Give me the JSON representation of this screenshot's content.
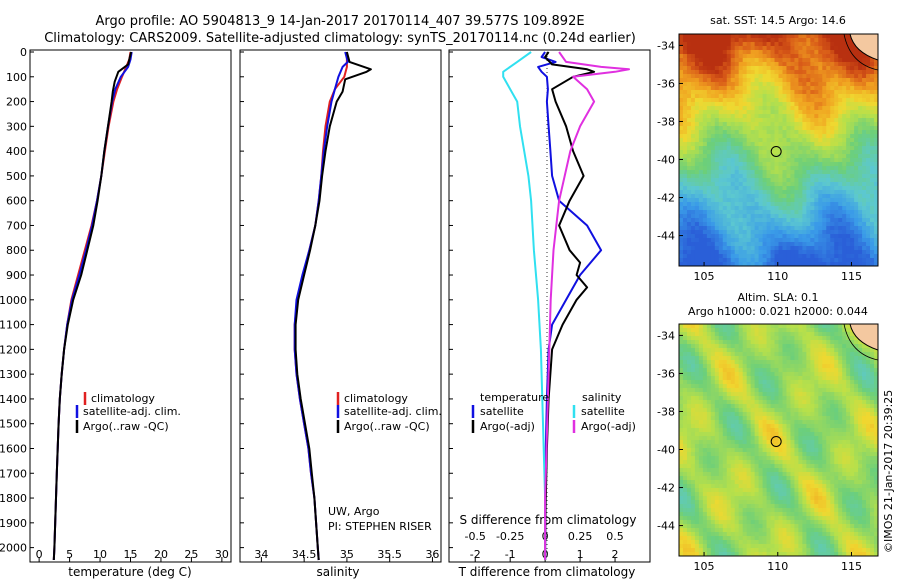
{
  "title_line1": "Argo profile: AO 5904813_9 14-Jan-2017 20170114_407 39.577S 109.892E",
  "title_line2": "Climatology: CARS2009. Satellite-adjusted climatology: synTS_20170114.nc (0.24d earlier)",
  "credit": "UW, Argo",
  "pi": "PI: STEPHEN RISER",
  "stamp": "©IMOS 21-Jan-2017 20:39:25",
  "colors": {
    "climatology": "#e02020",
    "satellite": "#1010e0",
    "argo": "#000000",
    "satellite_s": "#30e0f0",
    "argo_s": "#e030e0"
  },
  "chart_data": [
    {
      "type": "line",
      "xlabel": "temperature (deg C)",
      "ylim": [
        0,
        2050
      ],
      "y_ticks": [
        "0",
        "100",
        "200",
        "300",
        "400",
        "500",
        "600",
        "700",
        "800",
        "900",
        "1000",
        "1100",
        "1200",
        "1300",
        "1400",
        "1500",
        "1600",
        "1700",
        "1800",
        "1900",
        "2000"
      ],
      "x_ticks": [
        "0",
        "5",
        "10",
        "15",
        "20",
        "25",
        "30"
      ],
      "xlim": [
        -1.5,
        31.5
      ],
      "legend": [
        "climatology",
        "satellite-adj. clim.",
        "Argo(..raw -QC)"
      ],
      "series": [
        {
          "name": "climatology",
          "depth": [
            0,
            30,
            60,
            100,
            150,
            200,
            300,
            400,
            500,
            600,
            700,
            800,
            900,
            1000,
            1100,
            1200,
            1300,
            1400,
            1500,
            1700,
            2000,
            2050
          ],
          "values": [
            15.0,
            14.8,
            14.3,
            13.6,
            12.8,
            12.2,
            11.4,
            10.8,
            10.2,
            9.5,
            8.6,
            7.5,
            6.4,
            5.3,
            4.6,
            4.1,
            3.7,
            3.4,
            3.2,
            2.9,
            2.5,
            2.4
          ]
        },
        {
          "name": "satellite-adj. clim.",
          "depth": [
            0,
            30,
            60,
            100,
            150,
            200,
            300,
            400,
            500,
            600,
            700,
            800,
            900,
            1000,
            1100,
            1200,
            1300,
            1400,
            1500,
            1700,
            2000,
            2050
          ],
          "values": [
            15.2,
            15.0,
            14.6,
            13.4,
            12.5,
            12.0,
            11.3,
            10.7,
            10.2,
            9.5,
            8.7,
            7.7,
            6.6,
            5.4,
            4.6,
            4.1,
            3.7,
            3.4,
            3.2,
            2.9,
            2.5,
            2.4
          ]
        },
        {
          "name": "Argo(..raw -QC)",
          "depth": [
            0,
            20,
            50,
            80,
            120,
            160,
            200,
            300,
            400,
            500,
            600,
            700,
            800,
            900,
            1000,
            1100,
            1200,
            1300,
            1400,
            1500,
            1700,
            2000,
            2050
          ],
          "values": [
            15.1,
            14.9,
            14.6,
            13.0,
            12.4,
            12.1,
            11.9,
            11.3,
            10.7,
            10.2,
            9.6,
            8.9,
            7.9,
            6.9,
            5.6,
            4.7,
            4.1,
            3.7,
            3.4,
            3.2,
            2.9,
            2.5,
            2.4
          ]
        }
      ]
    },
    {
      "type": "line",
      "xlabel": "salinity",
      "ylim": [
        0,
        2050
      ],
      "x_ticks": [
        "34",
        "34.5",
        "35",
        "35.5",
        "36"
      ],
      "xlim": [
        33.75,
        36.1
      ],
      "legend": [
        "climatology",
        "satellite-adj. clim.",
        "Argo(..raw -QC)"
      ],
      "series": [
        {
          "name": "climatology",
          "depth": [
            0,
            60,
            100,
            150,
            200,
            300,
            400,
            500,
            600,
            700,
            800,
            900,
            1000,
            1100,
            1200,
            1300,
            1400,
            1500,
            1600,
            1700,
            1800,
            1900,
            2000,
            2050
          ],
          "values": [
            35.0,
            35.0,
            34.97,
            34.86,
            34.8,
            34.75,
            34.72,
            34.7,
            34.67,
            34.63,
            34.56,
            34.49,
            34.42,
            34.39,
            34.39,
            34.41,
            34.45,
            34.5,
            34.55,
            34.58,
            34.62,
            34.64,
            34.66,
            34.67
          ]
        },
        {
          "name": "satellite-adj. clim.",
          "depth": [
            0,
            40,
            60,
            100,
            150,
            200,
            300,
            400,
            500,
            600,
            700,
            800,
            900,
            1000,
            1100,
            1200,
            1300,
            1400,
            1500,
            1600,
            1700,
            1800,
            1900,
            2000,
            2050
          ],
          "values": [
            34.98,
            35.01,
            34.95,
            34.9,
            34.86,
            34.82,
            34.77,
            34.73,
            34.7,
            34.67,
            34.63,
            34.56,
            34.48,
            34.41,
            34.39,
            34.39,
            34.41,
            34.45,
            34.5,
            34.55,
            34.58,
            34.62,
            34.64,
            34.66,
            34.67
          ]
        },
        {
          "name": "Argo(..raw -QC)",
          "depth": [
            0,
            40,
            70,
            80,
            110,
            160,
            200,
            300,
            400,
            500,
            600,
            700,
            800,
            900,
            1000,
            1100,
            1200,
            1300,
            1400,
            1500,
            1600,
            1700,
            1800,
            1900,
            2000,
            2050
          ],
          "values": [
            35.0,
            35.03,
            35.28,
            35.23,
            34.98,
            34.95,
            34.88,
            34.8,
            34.75,
            34.71,
            34.68,
            34.63,
            34.57,
            34.5,
            34.43,
            34.4,
            34.4,
            34.42,
            34.46,
            34.51,
            34.56,
            34.59,
            34.62,
            34.64,
            34.66,
            34.67
          ]
        }
      ]
    },
    {
      "type": "line",
      "xlabel": "T difference from climatology",
      "xlabel_top": "S difference from climatology",
      "ylim": [
        0,
        2050
      ],
      "x_ticks": [
        "-2",
        "-1",
        "0",
        "1",
        "2"
      ],
      "x_ticks_top": [
        "-0.5",
        "-0.25",
        "0",
        "0.25",
        "0.5"
      ],
      "xlim": [
        -2.75,
        3.0
      ],
      "legend_titles": [
        "temperature",
        "salinity"
      ],
      "legend": [
        "satellite",
        "Argo(-adj)",
        "satellite",
        "Argo(-adj)"
      ],
      "series": [
        {
          "name": "satellite",
          "variable": "temperature",
          "depth": [
            0,
            20,
            40,
            60,
            80,
            100,
            150,
            200,
            300,
            400,
            500,
            600,
            700,
            800,
            900,
            1000,
            1100,
            1200,
            1400,
            1600,
            1800,
            2000,
            2050
          ],
          "values": [
            0.0,
            -0.1,
            0.3,
            -0.2,
            -0.1,
            0.05,
            0.08,
            0.05,
            0.1,
            0.15,
            0.2,
            0.4,
            1.2,
            1.6,
            1.0,
            0.6,
            0.2,
            0.1,
            0.05,
            0.02,
            0.01,
            0.0,
            0.0
          ]
        },
        {
          "name": "Argo(-adj)",
          "variable": "temperature",
          "depth": [
            0,
            20,
            50,
            70,
            80,
            100,
            150,
            200,
            300,
            400,
            500,
            600,
            700,
            800,
            850,
            900,
            950,
            1000,
            1100,
            1200,
            1400,
            1600,
            1800,
            2000,
            2050
          ],
          "values": [
            0.1,
            0.0,
            0.2,
            1.2,
            1.4,
            0.8,
            0.2,
            0.3,
            0.6,
            0.8,
            1.1,
            0.7,
            0.4,
            0.7,
            1.0,
            0.9,
            1.2,
            0.9,
            0.5,
            0.2,
            0.1,
            0.05,
            0.02,
            0.0,
            0.0
          ]
        },
        {
          "name": "satellite",
          "variable": "salinity",
          "depth": [
            0,
            40,
            80,
            100,
            150,
            200,
            300,
            400,
            500,
            600,
            800,
            1000,
            1200,
            1400,
            1600,
            1800,
            2000,
            2050
          ],
          "values": [
            -0.1,
            -0.2,
            -0.3,
            -0.3,
            -0.25,
            -0.2,
            -0.18,
            -0.15,
            -0.12,
            -0.1,
            -0.08,
            -0.05,
            -0.03,
            -0.02,
            -0.01,
            0.0,
            0.0,
            0.0
          ]
        },
        {
          "name": "Argo(-adj)",
          "variable": "salinity",
          "depth": [
            0,
            40,
            60,
            70,
            80,
            100,
            150,
            200,
            300,
            400,
            600,
            800,
            1000,
            1200,
            1400,
            1600,
            1800,
            2000,
            2050
          ],
          "values": [
            0.1,
            0.15,
            0.4,
            0.6,
            0.5,
            0.2,
            0.3,
            0.35,
            0.25,
            0.18,
            0.1,
            0.06,
            0.04,
            0.03,
            0.02,
            0.01,
            0.0,
            0.0,
            0.0
          ]
        }
      ]
    },
    {
      "type": "heatmap",
      "title": "sat. SST: 14.5 Argo: 14.6",
      "x_ticks": [
        "105",
        "110",
        "115"
      ],
      "y_ticks": [
        "-34",
        "-36",
        "-38",
        "-40",
        "-42",
        "-44"
      ],
      "xlim": [
        103.3,
        116.8
      ],
      "ylim": [
        -45.6,
        -33.4
      ],
      "marker": {
        "lon": 109.892,
        "lat": -39.577
      }
    },
    {
      "type": "heatmap",
      "title": "Altim. SLA: 0.1",
      "subtitle": "Argo h1000: 0.021 h2000: 0.044",
      "x_ticks": [
        "105",
        "110",
        "115"
      ],
      "y_ticks": [
        "-34",
        "-36",
        "-38",
        "-40",
        "-42",
        "-44"
      ],
      "xlim": [
        103.3,
        116.8
      ],
      "ylim": [
        -45.6,
        -33.4
      ],
      "marker": {
        "lon": 109.892,
        "lat": -39.577
      }
    }
  ]
}
